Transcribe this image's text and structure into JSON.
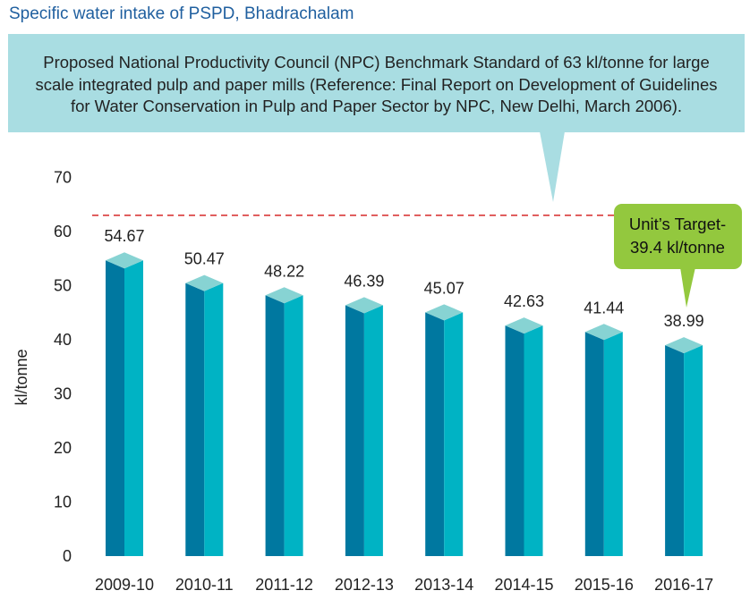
{
  "title": "Specific water intake of PSPD, Bhadrachalam",
  "callout": {
    "lines": [
      "Proposed National Productivity Council (NPC) Benchmark Standard of 63 kl/tonne for large",
      "scale integrated pulp and paper mills (Reference: Final Report on Development of Guidelines",
      "for Water Conservation in Pulp and Paper Sector by NPC, New Delhi, March 2006)."
    ]
  },
  "target_callout": {
    "lines": [
      "Unit’s Target-",
      "39.4 kl/tonne"
    ]
  },
  "colors": {
    "bar_front": "#00b3c4",
    "bar_side": "#0078a0",
    "bar_top": "#87d3d3",
    "callout_bg": "#a9dde2",
    "target_bg": "#93c83e",
    "benchmark_line": "#d93a3a",
    "title": "#1f5f9f"
  },
  "chart_data": {
    "type": "bar",
    "style": "3d-column",
    "categories": [
      "2009-10",
      "2010-11",
      "2011-12",
      "2012-13",
      "2013-14",
      "2014-15",
      "2015-16",
      "2016-17"
    ],
    "values": [
      54.67,
      50.47,
      48.22,
      46.39,
      45.07,
      42.63,
      41.44,
      38.99
    ],
    "value_labels": [
      "54.67",
      "50.47",
      "48.22",
      "46.39",
      "45.07",
      "42.63",
      "41.44",
      "38.99"
    ],
    "ylabel": "kl/tonne",
    "xlabel": "",
    "ylim": [
      0,
      70
    ],
    "yticks": [
      0,
      10,
      20,
      30,
      40,
      50,
      60,
      70
    ],
    "grid": false,
    "reference_line": {
      "value": 63,
      "style": "dashed"
    }
  }
}
